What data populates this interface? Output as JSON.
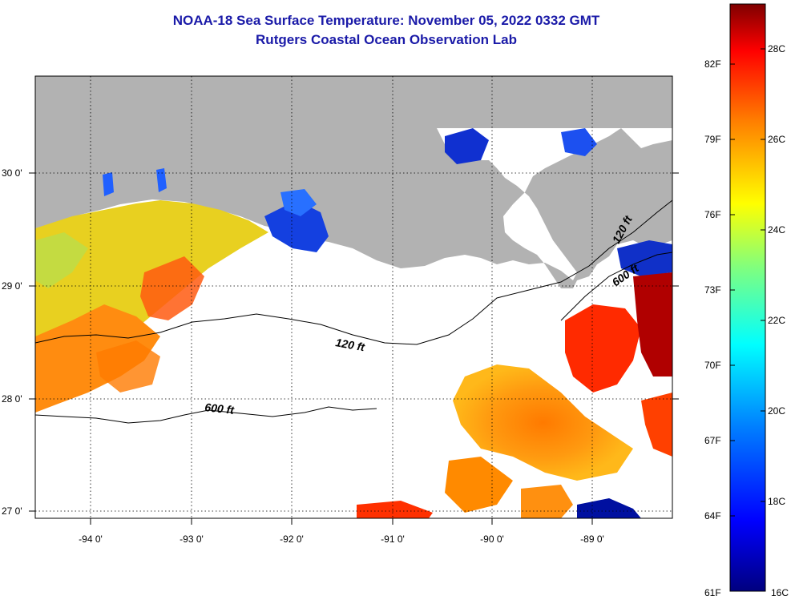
{
  "title": "NOAA-18 Sea Surface Temperature:  November 05, 2022 0332 GMT",
  "subtitle": "Rutgers Coastal Ocean Observation Lab",
  "map": {
    "longitude_labels": [
      {
        "value": -94,
        "label": "-94 0'"
      },
      {
        "value": -93,
        "label": "-93 0'"
      },
      {
        "value": -92,
        "label": "-92 0'"
      },
      {
        "value": -91,
        "label": "-91 0'"
      },
      {
        "value": -90,
        "label": "-90 0'"
      },
      {
        "value": -89,
        "label": "-89 0'"
      }
    ],
    "latitude_labels": [
      {
        "value": 30,
        "label": "30 0'"
      },
      {
        "value": 29,
        "label": "29 0'"
      },
      {
        "value": 28,
        "label": "28 0'"
      },
      {
        "value": 27,
        "label": "27 0'"
      }
    ],
    "lon_range": [
      -94.55,
      -88.3
    ],
    "lat_range": [
      26.95,
      30.85
    ],
    "isobaths": [
      {
        "label": "120 ft"
      },
      {
        "label": "600 ft"
      },
      {
        "label": "120 ft"
      },
      {
        "label": "600 ft"
      }
    ],
    "land_color": "#b2b2b2",
    "cloud_color": "#ffffff"
  },
  "colorbar": {
    "fahrenheit_labels": [
      "82F",
      "79F",
      "76F",
      "73F",
      "70F",
      "67F",
      "64F",
      "61F"
    ],
    "celsius_labels": [
      "28C",
      "26C",
      "24C",
      "22C",
      "20C",
      "18C",
      "16C"
    ],
    "range_c": [
      16,
      29.4
    ],
    "colors": [
      "#00007f",
      "#0000ff",
      "#007fff",
      "#00ffff",
      "#7fff7f",
      "#ffff00",
      "#ff7f00",
      "#ff0000",
      "#7f0000"
    ]
  }
}
